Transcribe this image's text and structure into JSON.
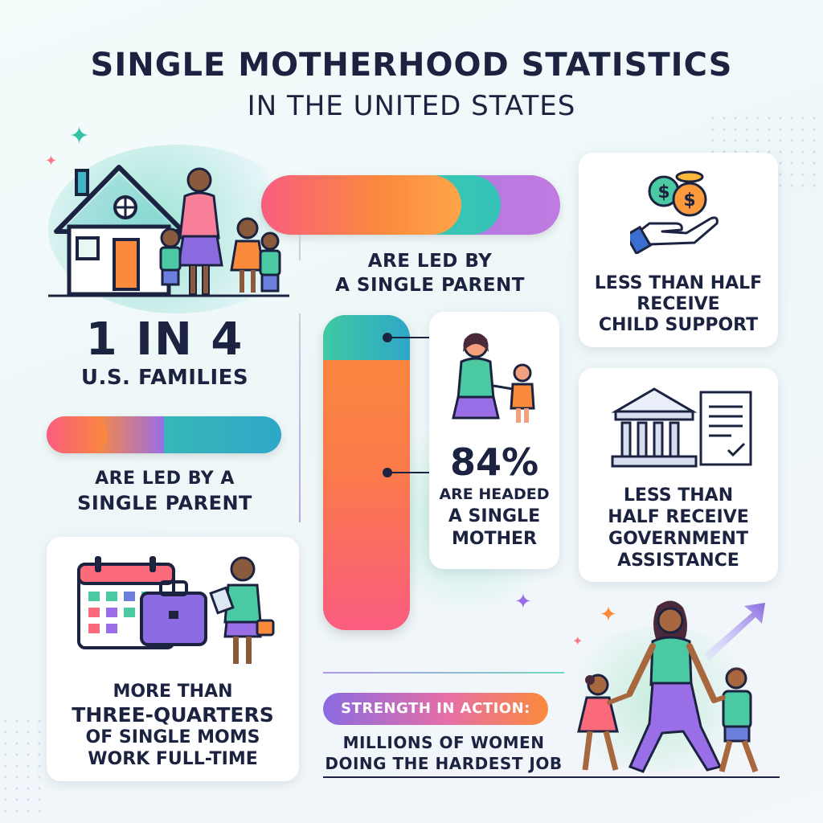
{
  "header": {
    "title": "SINGLE MOTHERHOOD STATISTICS",
    "subtitle": "IN THE UNITED STATES"
  },
  "left_top": {
    "stat": "1 IN 4",
    "stat_sub": "U.S. FAMILIES",
    "caption_line1": "ARE LED BY A",
    "caption_line2": "SINGLE PARENT",
    "icon": "house-family-icon"
  },
  "top_bar": {
    "caption_line1": "ARE LED BY",
    "caption_line2": "A SINGLE PARENT"
  },
  "center_card": {
    "stat": "84%",
    "line1": "ARE HEADED",
    "line2": "A SINGLE",
    "line3": "MOTHER",
    "icon": "mother-child-icon"
  },
  "card_child_support": {
    "line1": "LESS THAN HALF",
    "line2": "RECEIVE",
    "line3": "CHILD SUPPORT",
    "icon": "hand-coins-icon"
  },
  "card_government": {
    "line1": "LESS THAN",
    "line2": "HALF RECEIVE",
    "line3": "GOVERNMENT",
    "line4": "ASSISTANCE",
    "icon": "government-building-icon"
  },
  "card_work": {
    "line1": "MORE THAN",
    "line2": "THREE-QUARTERS",
    "line3": "OF SINGLE MOMS",
    "line4": "WORK FULL-TIME",
    "icon": "calendar-briefcase-icon"
  },
  "strength": {
    "badge": "STRENGTH IN ACTION:",
    "line1": "MILLIONS OF WOMEN",
    "line2": "DOING THE HARDEST JOB",
    "icon": "walking-family-icon"
  },
  "colors": {
    "navy": "#1b2340",
    "orange": "#fb8a3c",
    "pink": "#fa5d7f",
    "purple": "#9a6ee6",
    "teal": "#34c3a7"
  }
}
